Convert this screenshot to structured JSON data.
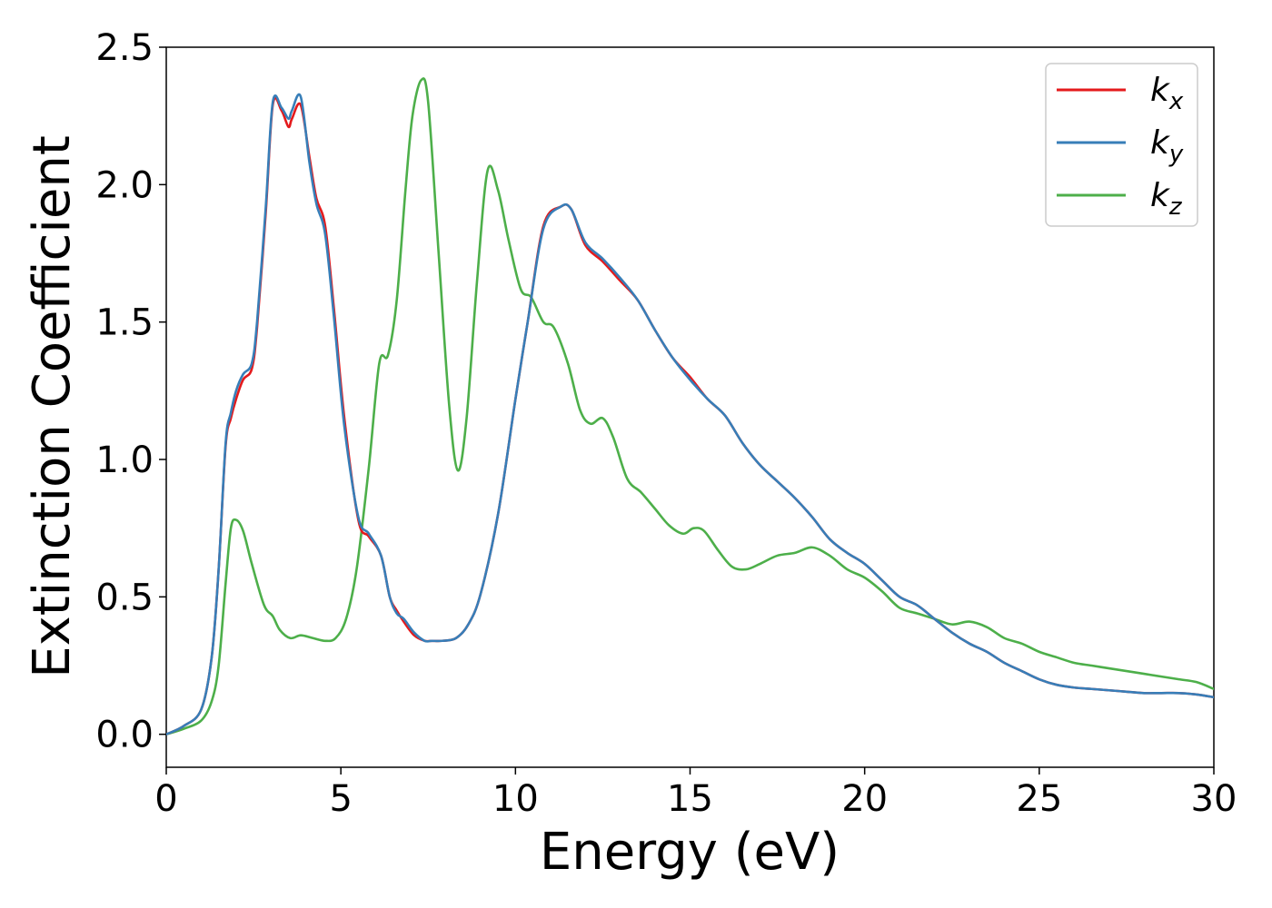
{
  "chart_data": {
    "type": "line",
    "title": "",
    "xlabel": "Energy (eV)",
    "ylabel": "Extinction Coefficient",
    "xlim": [
      0,
      30
    ],
    "ylim": [
      -0.12,
      2.5
    ],
    "xticks": [
      0,
      5,
      10,
      15,
      20,
      25,
      30
    ],
    "xtick_labels": [
      "0",
      "5",
      "10",
      "15",
      "20",
      "25",
      "30"
    ],
    "yticks": [
      0.0,
      0.5,
      1.0,
      1.5,
      2.0,
      2.5
    ],
    "ytick_labels": [
      "0.0",
      "0.5",
      "1.0",
      "1.5",
      "2.0",
      "2.5"
    ],
    "grid": false,
    "legend_position": "top-right",
    "series": [
      {
        "name": "k",
        "subscript": "x",
        "color": "#e41a1c",
        "x": [
          0,
          0.5,
          1.0,
          1.3,
          1.5,
          1.7,
          1.85,
          2.0,
          2.2,
          2.45,
          2.6,
          2.85,
          3.05,
          3.3,
          3.5,
          3.6,
          3.85,
          4.1,
          4.3,
          4.55,
          4.8,
          5.1,
          5.5,
          5.8,
          6.15,
          6.4,
          6.6,
          6.8,
          7.1,
          7.4,
          7.6,
          7.9,
          8.3,
          8.65,
          9.0,
          9.5,
          10.0,
          10.35,
          10.8,
          11.3,
          11.6,
          12.0,
          12.5,
          13.0,
          13.5,
          14.0,
          14.5,
          15.0,
          15.5,
          16.0,
          16.5,
          17.0,
          17.5,
          18.0,
          18.5,
          19.0,
          19.5,
          20.0,
          20.5,
          21.0,
          21.5,
          22.0,
          22.5,
          23.0,
          23.5,
          24.0,
          24.5,
          25.0,
          25.5,
          26.0,
          26.5,
          27.0,
          27.5,
          28.0,
          28.5,
          29.0,
          29.5,
          30.0
        ],
        "y": [
          0.0,
          0.03,
          0.09,
          0.28,
          0.6,
          1.05,
          1.15,
          1.22,
          1.29,
          1.33,
          1.48,
          1.9,
          2.29,
          2.27,
          2.21,
          2.24,
          2.29,
          2.1,
          1.95,
          1.85,
          1.55,
          1.15,
          0.78,
          0.72,
          0.65,
          0.5,
          0.45,
          0.41,
          0.36,
          0.34,
          0.34,
          0.34,
          0.35,
          0.4,
          0.51,
          0.8,
          1.22,
          1.5,
          1.85,
          1.92,
          1.91,
          1.78,
          1.72,
          1.65,
          1.58,
          1.47,
          1.37,
          1.3,
          1.22,
          1.16,
          1.06,
          0.98,
          0.92,
          0.86,
          0.79,
          0.71,
          0.66,
          0.62,
          0.56,
          0.5,
          0.47,
          0.42,
          0.37,
          0.33,
          0.3,
          0.26,
          0.23,
          0.2,
          0.18,
          0.17,
          0.165,
          0.16,
          0.155,
          0.15,
          0.15,
          0.15,
          0.145,
          0.135
        ]
      },
      {
        "name": "k",
        "subscript": "y",
        "color": "#377eb8",
        "x": [
          0,
          0.5,
          1.0,
          1.3,
          1.5,
          1.7,
          1.85,
          2.0,
          2.2,
          2.45,
          2.6,
          2.85,
          3.05,
          3.3,
          3.5,
          3.6,
          3.85,
          4.1,
          4.3,
          4.55,
          4.8,
          5.1,
          5.5,
          5.8,
          6.15,
          6.4,
          6.6,
          6.8,
          7.1,
          7.4,
          7.6,
          7.9,
          8.3,
          8.65,
          9.0,
          9.5,
          10.0,
          10.35,
          10.8,
          11.3,
          11.6,
          12.0,
          12.5,
          13.0,
          13.5,
          14.0,
          14.5,
          15.0,
          15.5,
          16.0,
          16.5,
          17.0,
          17.5,
          18.0,
          18.5,
          19.0,
          19.5,
          20.0,
          20.5,
          21.0,
          21.5,
          22.0,
          22.5,
          23.0,
          23.5,
          24.0,
          24.5,
          25.0,
          25.5,
          26.0,
          26.5,
          27.0,
          27.5,
          28.0,
          28.5,
          29.0,
          29.5,
          30.0
        ],
        "y": [
          0.0,
          0.03,
          0.09,
          0.28,
          0.6,
          1.06,
          1.17,
          1.25,
          1.31,
          1.35,
          1.5,
          1.92,
          2.3,
          2.28,
          2.24,
          2.27,
          2.32,
          2.08,
          1.93,
          1.82,
          1.52,
          1.12,
          0.79,
          0.73,
          0.65,
          0.5,
          0.44,
          0.42,
          0.37,
          0.34,
          0.34,
          0.34,
          0.35,
          0.4,
          0.51,
          0.8,
          1.22,
          1.5,
          1.84,
          1.92,
          1.91,
          1.79,
          1.73,
          1.66,
          1.58,
          1.47,
          1.37,
          1.29,
          1.22,
          1.16,
          1.06,
          0.98,
          0.92,
          0.86,
          0.79,
          0.71,
          0.66,
          0.62,
          0.56,
          0.5,
          0.47,
          0.42,
          0.37,
          0.33,
          0.3,
          0.26,
          0.23,
          0.2,
          0.18,
          0.17,
          0.165,
          0.16,
          0.155,
          0.15,
          0.15,
          0.15,
          0.145,
          0.135
        ]
      },
      {
        "name": "k",
        "subscript": "z",
        "color": "#4daf4a",
        "x": [
          0,
          0.5,
          1.0,
          1.3,
          1.5,
          1.7,
          1.85,
          2.0,
          2.2,
          2.45,
          2.8,
          3.05,
          3.25,
          3.55,
          3.85,
          4.2,
          4.55,
          4.85,
          5.15,
          5.45,
          5.8,
          6.1,
          6.35,
          6.6,
          6.85,
          7.05,
          7.3,
          7.5,
          7.8,
          8.1,
          8.35,
          8.6,
          8.9,
          9.2,
          9.5,
          9.8,
          10.15,
          10.45,
          10.8,
          11.1,
          11.5,
          11.85,
          12.15,
          12.5,
          12.8,
          13.2,
          13.6,
          14.0,
          14.4,
          14.8,
          15.1,
          15.4,
          15.8,
          16.2,
          16.6,
          17.0,
          17.5,
          18.0,
          18.5,
          19.0,
          19.5,
          20.0,
          20.5,
          21.0,
          21.5,
          22.0,
          22.5,
          23.0,
          23.5,
          24.0,
          24.5,
          25.0,
          25.5,
          26.0,
          26.5,
          27.0,
          27.5,
          28.0,
          28.5,
          29.0,
          29.5,
          30.0
        ],
        "y": [
          0.0,
          0.02,
          0.05,
          0.12,
          0.25,
          0.55,
          0.75,
          0.78,
          0.74,
          0.62,
          0.47,
          0.43,
          0.38,
          0.35,
          0.36,
          0.35,
          0.34,
          0.35,
          0.42,
          0.6,
          0.97,
          1.35,
          1.38,
          1.58,
          1.98,
          2.25,
          2.38,
          2.3,
          1.75,
          1.2,
          0.96,
          1.15,
          1.65,
          2.05,
          1.98,
          1.8,
          1.62,
          1.59,
          1.5,
          1.48,
          1.35,
          1.18,
          1.13,
          1.15,
          1.08,
          0.93,
          0.88,
          0.82,
          0.76,
          0.73,
          0.75,
          0.74,
          0.67,
          0.61,
          0.6,
          0.62,
          0.65,
          0.66,
          0.68,
          0.65,
          0.6,
          0.57,
          0.52,
          0.46,
          0.44,
          0.42,
          0.4,
          0.41,
          0.39,
          0.35,
          0.33,
          0.3,
          0.28,
          0.26,
          0.25,
          0.24,
          0.23,
          0.22,
          0.21,
          0.2,
          0.19,
          0.165
        ]
      }
    ]
  }
}
